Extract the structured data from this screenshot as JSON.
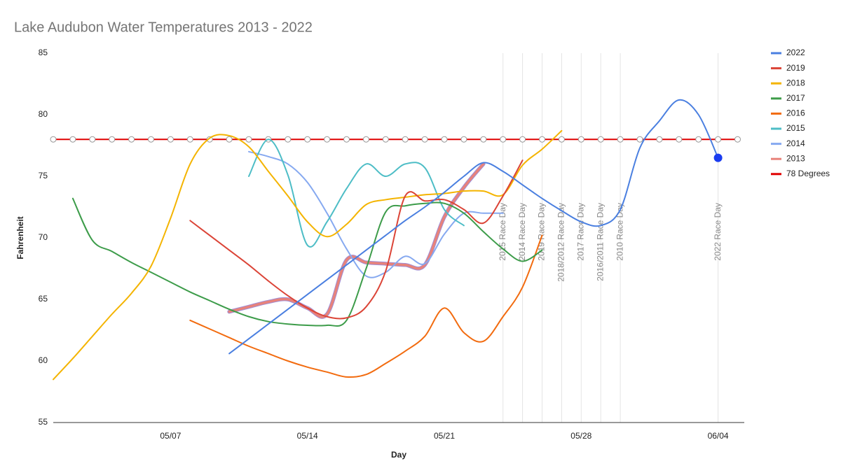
{
  "chart_data": {
    "type": "line",
    "title": "Lake Audubon Water Temperatures 2013 - 2022",
    "x_label": "Day",
    "y_label": "Fahrenheit",
    "categories": [
      null,
      null,
      null,
      null,
      null,
      null,
      "05/07",
      null,
      null,
      null,
      null,
      null,
      null,
      "05/14",
      null,
      null,
      null,
      null,
      null,
      null,
      "05/21",
      null,
      null,
      null,
      null,
      null,
      null,
      "05/28",
      null,
      null,
      null,
      null,
      null,
      null,
      "06/04",
      null
    ],
    "ylim": [
      55,
      85
    ],
    "yticks": [
      55,
      60,
      65,
      70,
      75,
      80,
      85
    ],
    "grid": false,
    "smooth": true,
    "legend": "right",
    "series": [
      {
        "name": "2022",
        "color": "#4a7fe0",
        "highlight_last": true,
        "values": [
          null,
          null,
          null,
          null,
          null,
          null,
          null,
          null,
          null,
          60.6,
          61.8,
          63.0,
          64.2,
          65.4,
          66.6,
          67.8,
          69.0,
          70.2,
          71.4,
          72.5,
          73.7,
          75.0,
          76.1,
          75.4,
          74.3,
          73.2,
          72.2,
          71.3,
          71.0,
          72.3,
          77.3,
          79.5,
          81.2,
          80.0,
          76.5,
          null
        ]
      },
      {
        "name": "2019",
        "color": "#db4437",
        "values": [
          null,
          null,
          null,
          null,
          null,
          null,
          null,
          71.4,
          70.2,
          69.0,
          67.8,
          66.5,
          65.3,
          64.3,
          63.6,
          63.5,
          64.4,
          67.3,
          73.4,
          73.0,
          73.1,
          72.3,
          71.2,
          73.4,
          76.3,
          null,
          null,
          null,
          null,
          null,
          null,
          null,
          null,
          null,
          null,
          null
        ]
      },
      {
        "name": "2018",
        "color": "#f4b400",
        "values": [
          58.5,
          60.2,
          62.0,
          63.8,
          65.5,
          67.7,
          71.6,
          76.0,
          78.1,
          78.3,
          77.4,
          75.4,
          73.4,
          71.3,
          70.1,
          71.1,
          72.7,
          73.1,
          73.3,
          73.5,
          73.6,
          73.8,
          73.8,
          73.5,
          75.9,
          77.2,
          78.7,
          null,
          null,
          null,
          null,
          null,
          null,
          null,
          null,
          null
        ]
      },
      {
        "name": "2017",
        "color": "#3d9c4a",
        "values": [
          null,
          73.2,
          69.8,
          68.9,
          68.0,
          67.2,
          66.4,
          65.6,
          64.9,
          64.2,
          63.6,
          63.2,
          63.0,
          62.9,
          62.9,
          63.3,
          67.5,
          72.1,
          72.6,
          72.8,
          72.8,
          72.0,
          70.5,
          69.1,
          68.1,
          69.0,
          null,
          null,
          null,
          null,
          null,
          null,
          null,
          null,
          null,
          null
        ]
      },
      {
        "name": "2016",
        "color": "#f26b0f",
        "values": [
          null,
          null,
          null,
          null,
          null,
          null,
          null,
          63.3,
          62.6,
          61.9,
          61.2,
          60.6,
          60.0,
          59.5,
          59.1,
          58.7,
          58.9,
          59.8,
          60.8,
          62.0,
          64.3,
          62.3,
          61.6,
          63.6,
          66.0,
          70.2,
          null,
          null,
          null,
          null,
          null,
          null,
          null,
          null,
          null,
          null
        ]
      },
      {
        "name": "2015",
        "color": "#4dbdc6",
        "values": [
          null,
          null,
          null,
          null,
          null,
          null,
          null,
          null,
          null,
          null,
          75.0,
          78.0,
          75.1,
          69.4,
          71.3,
          74.0,
          76.0,
          75.0,
          76.0,
          75.7,
          72.3,
          71.0,
          null,
          null,
          null,
          null,
          null,
          null,
          null,
          null,
          null,
          null,
          null,
          null,
          null,
          null
        ]
      },
      {
        "name": "2014",
        "color": "#86a9f0",
        "values": [
          null,
          null,
          null,
          null,
          null,
          null,
          null,
          null,
          null,
          null,
          77.0,
          76.6,
          76.0,
          74.5,
          72.0,
          69.1,
          66.9,
          67.2,
          68.5,
          67.9,
          70.3,
          72.0,
          72.0,
          72.0,
          null,
          null,
          null,
          null,
          null,
          null,
          null,
          null,
          null,
          null,
          null,
          null
        ]
      },
      {
        "name": "2013",
        "color": "#e8827a",
        "values": [
          null,
          null,
          null,
          null,
          null,
          null,
          null,
          null,
          null,
          64.0,
          64.4,
          64.8,
          65.0,
          64.3,
          63.8,
          68.2,
          68.0,
          67.9,
          67.8,
          67.8,
          71.7,
          74.1,
          76.0,
          null,
          null,
          null,
          null,
          null,
          null,
          null,
          null,
          null,
          null,
          null,
          null,
          null
        ]
      },
      {
        "name": "78 Degrees",
        "color": "#e00000",
        "markers": true,
        "values": [
          78,
          78,
          78,
          78,
          78,
          78,
          78,
          78,
          78,
          78,
          78,
          78,
          78,
          78,
          78,
          78,
          78,
          78,
          78,
          78,
          78,
          78,
          78,
          78,
          78,
          78,
          78,
          78,
          78,
          78,
          78,
          78,
          78,
          78,
          78,
          78
        ]
      }
    ],
    "annotations": [
      {
        "at": 23,
        "label": "2015 Race Day"
      },
      {
        "at": 24,
        "label": "2014 Race Day"
      },
      {
        "at": 25,
        "label": "2019 Race Day"
      },
      {
        "at": 26,
        "label": "2018/2012 Race Day"
      },
      {
        "at": 27,
        "label": "2017 Race Day"
      },
      {
        "at": 28,
        "label": "2016/2011 Race Day"
      },
      {
        "at": 29,
        "label": "2010 Race Day"
      },
      {
        "at": 34,
        "label": "2022 Race Day"
      }
    ]
  }
}
